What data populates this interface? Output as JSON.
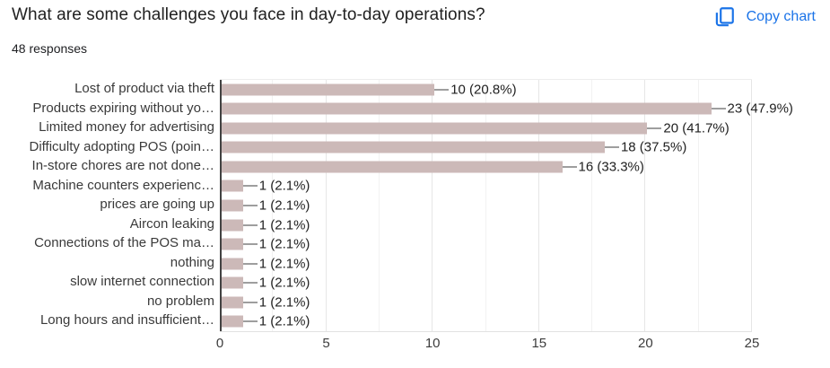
{
  "header": {
    "title": "What are some challenges you face in day-to-day operations?",
    "responses_label": "48 responses",
    "copy_button_label": "Copy chart",
    "accent_color": "#1a73e8"
  },
  "chart_data": {
    "type": "bar",
    "orientation": "horizontal",
    "title": "What are some challenges you face in day-to-day operations?",
    "categories": [
      "Lost of product via theft",
      "Products expiring without yo…",
      "Limited money for advertising",
      "Difficulty adopting POS (poin…",
      "In-store chores are not done…",
      "Machine counters experienc…",
      "prices are going up",
      "Aircon leaking",
      "Connections of the POS ma…",
      "nothing",
      "slow internet connection",
      "no problem",
      "Long hours and insufficient…"
    ],
    "values": [
      10,
      23,
      20,
      18,
      16,
      1,
      1,
      1,
      1,
      1,
      1,
      1,
      1
    ],
    "value_labels": [
      "10 (20.8%)",
      "23 (47.9%)",
      "20 (41.7%)",
      "18 (37.5%)",
      "16 (33.3%)",
      "1 (2.1%)",
      "1 (2.1%)",
      "1 (2.1%)",
      "1 (2.1%)",
      "1 (2.1%)",
      "1 (2.1%)",
      "1 (2.1%)",
      "1 (2.1%)"
    ],
    "xlim": [
      0,
      25
    ],
    "x_ticks": [
      0,
      5,
      10,
      15,
      20,
      25
    ],
    "minor_grid_step": 2.5,
    "grid": true,
    "legend": "none",
    "bar_color": "#ccb9b8",
    "axis_color": "#424242",
    "major_grid_color": "#e6e6e6",
    "minor_grid_color": "#f2f2f2",
    "stem_color": "#9e9e9e",
    "xlabel": "",
    "ylabel": ""
  }
}
